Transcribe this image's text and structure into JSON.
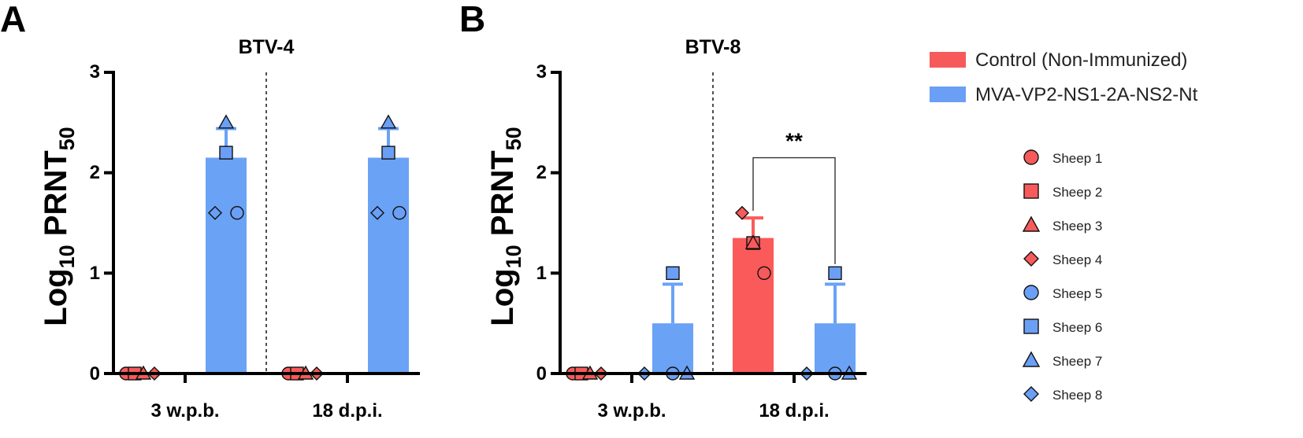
{
  "panel_letters": [
    "A",
    "B"
  ],
  "colors": {
    "control": "#f65a5a",
    "mva": "#6a9ff5",
    "control_bar": "#fb5a5a",
    "mva_bar": "#6aa2f6"
  },
  "legend": {
    "groups": [
      {
        "label": "Control (Non-Immunized)",
        "color": "#f65a5a"
      },
      {
        "label": "MVA-VP2-NS1-2A-NS2-Nt",
        "color": "#6a9ff5"
      }
    ],
    "sheep": [
      {
        "label": "Sheep 1",
        "marker": "circle",
        "color": "#f65a5a"
      },
      {
        "label": "Sheep 2",
        "marker": "square",
        "color": "#f65a5a"
      },
      {
        "label": "Sheep 3",
        "marker": "triangle",
        "color": "#f65a5a"
      },
      {
        "label": "Sheep 4",
        "marker": "diamond",
        "color": "#f65a5a"
      },
      {
        "label": "Sheep 5",
        "marker": "circle",
        "color": "#6a9ff5"
      },
      {
        "label": "Sheep 6",
        "marker": "square",
        "color": "#6a9ff5"
      },
      {
        "label": "Sheep 7",
        "marker": "triangle",
        "color": "#6a9ff5"
      },
      {
        "label": "Sheep 8",
        "marker": "diamond",
        "color": "#6a9ff5"
      }
    ]
  },
  "chart_data": [
    {
      "type": "bar",
      "panel": "A",
      "title": "BTV-4",
      "ylabel_main": "Log",
      "ylabel_sub": "10",
      "ylabel_rest": " PRNT",
      "ylabel_sub2": "50",
      "ylim": [
        0,
        3
      ],
      "yticks": [
        "0",
        "1",
        "2",
        "3"
      ],
      "categories": [
        "3 w.p.b.",
        "18 d.p.i."
      ],
      "series": [
        {
          "name": "Control (Non-Immunized)",
          "values": [
            0,
            0
          ],
          "sd": [
            0,
            0
          ],
          "points": [
            {
              "sheep": "Sheep 1",
              "values": [
                0,
                0
              ]
            },
            {
              "sheep": "Sheep 2",
              "values": [
                0,
                0
              ]
            },
            {
              "sheep": "Sheep 3",
              "values": [
                0,
                0
              ]
            },
            {
              "sheep": "Sheep 4",
              "values": [
                0,
                0
              ]
            }
          ]
        },
        {
          "name": "MVA-VP2-NS1-2A-NS2-Nt",
          "values": [
            2.15,
            2.15
          ],
          "sd": [
            0.29,
            0.29
          ],
          "points": [
            {
              "sheep": "Sheep 5",
              "values": [
                1.6,
                1.6
              ]
            },
            {
              "sheep": "Sheep 6",
              "values": [
                2.2,
                2.2
              ]
            },
            {
              "sheep": "Sheep 7",
              "values": [
                2.5,
                2.5
              ]
            },
            {
              "sheep": "Sheep 8",
              "values": [
                1.6,
                1.6
              ]
            }
          ]
        }
      ],
      "significance": []
    },
    {
      "type": "bar",
      "panel": "B",
      "title": "BTV-8",
      "ylabel_main": "Log",
      "ylabel_sub": "10",
      "ylabel_rest": " PRNT",
      "ylabel_sub2": "50",
      "ylim": [
        0,
        3
      ],
      "yticks": [
        "0",
        "1",
        "2",
        "3"
      ],
      "categories": [
        "3 w.p.b.",
        "18 d.p.i."
      ],
      "series": [
        {
          "name": "Control (Non-Immunized)",
          "values": [
            0,
            1.35
          ],
          "sd": [
            0,
            0.2
          ],
          "points": [
            {
              "sheep": "Sheep 1",
              "values": [
                0,
                1.0
              ]
            },
            {
              "sheep": "Sheep 2",
              "values": [
                0,
                1.3
              ]
            },
            {
              "sheep": "Sheep 3",
              "values": [
                0,
                1.3
              ]
            },
            {
              "sheep": "Sheep 4",
              "values": [
                0,
                1.6
              ]
            }
          ]
        },
        {
          "name": "MVA-VP2-NS1-2A-NS2-Nt",
          "values": [
            0.5,
            0.5
          ],
          "sd": [
            0.39,
            0.39
          ],
          "points": [
            {
              "sheep": "Sheep 5",
              "values": [
                0,
                0
              ]
            },
            {
              "sheep": "Sheep 6",
              "values": [
                1.0,
                1.0
              ]
            },
            {
              "sheep": "Sheep 7",
              "values": [
                0,
                0
              ]
            },
            {
              "sheep": "Sheep 8",
              "values": [
                0,
                0
              ]
            }
          ]
        }
      ],
      "significance": [
        {
          "category": "18 d.p.i.",
          "label": "**"
        }
      ]
    }
  ]
}
